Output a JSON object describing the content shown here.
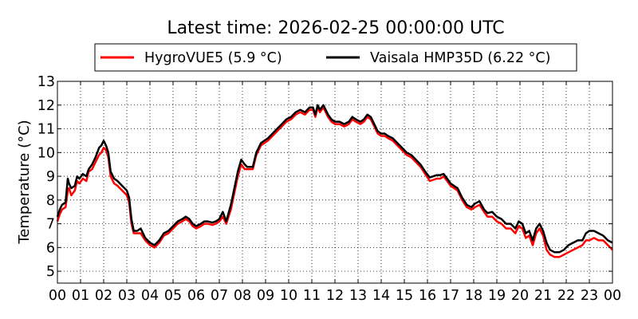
{
  "chart_data": {
    "type": "line",
    "title": "Latest time: 2026-02-25 00:00:00 UTC",
    "xlabel": "",
    "ylabel": "Temperature (°C)",
    "xlim": [
      0,
      24
    ],
    "ylim": [
      4.5,
      13
    ],
    "x_ticks": [
      0,
      1,
      2,
      3,
      4,
      5,
      6,
      7,
      8,
      9,
      10,
      11,
      12,
      13,
      14,
      15,
      16,
      17,
      18,
      19,
      20,
      21,
      22,
      23,
      24
    ],
    "x_tick_labels": [
      "00",
      "01",
      "02",
      "03",
      "04",
      "05",
      "06",
      "07",
      "08",
      "09",
      "10",
      "11",
      "12",
      "13",
      "14",
      "15",
      "16",
      "17",
      "18",
      "19",
      "20",
      "21",
      "22",
      "23",
      "00"
    ],
    "y_ticks": [
      5,
      6,
      7,
      8,
      9,
      10,
      11,
      12,
      13
    ],
    "y_tick_labels": [
      "5",
      "6",
      "7",
      "8",
      "9",
      "10",
      "11",
      "12",
      "13"
    ],
    "grid": true,
    "legend_position": "top-center",
    "series": [
      {
        "name": "HygroVUE5 (5.9 °C)",
        "color": "#ff0000",
        "x": [
          0,
          0.1,
          0.2,
          0.35,
          0.45,
          0.5,
          0.6,
          0.75,
          0.85,
          0.95,
          1.1,
          1.25,
          1.35,
          1.5,
          1.65,
          1.8,
          1.9,
          2.0,
          2.1,
          2.2,
          2.3,
          2.45,
          2.6,
          2.8,
          3.0,
          3.1,
          3.2,
          3.3,
          3.45,
          3.6,
          3.8,
          4.0,
          4.2,
          4.4,
          4.6,
          4.8,
          5.0,
          5.2,
          5.4,
          5.55,
          5.7,
          5.85,
          6.0,
          6.2,
          6.35,
          6.5,
          6.7,
          6.85,
          7.0,
          7.15,
          7.3,
          7.5,
          7.65,
          7.8,
          7.95,
          8.1,
          8.2,
          8.3,
          8.45,
          8.6,
          8.8,
          8.95,
          9.1,
          9.3,
          9.5,
          9.7,
          9.9,
          10.1,
          10.3,
          10.5,
          10.7,
          10.9,
          11.05,
          11.15,
          11.25,
          11.35,
          11.5,
          11.7,
          11.85,
          12.0,
          12.2,
          12.4,
          12.6,
          12.75,
          12.9,
          13.1,
          13.25,
          13.4,
          13.55,
          13.7,
          13.85,
          14.0,
          14.15,
          14.3,
          14.5,
          14.7,
          14.9,
          15.1,
          15.3,
          15.5,
          15.7,
          15.9,
          16.1,
          16.25,
          16.4,
          16.55,
          16.7,
          16.85,
          17.0,
          17.15,
          17.3,
          17.5,
          17.7,
          17.9,
          18.05,
          18.25,
          18.45,
          18.6,
          18.8,
          19.0,
          19.2,
          19.4,
          19.6,
          19.8,
          19.95,
          20.1,
          20.25,
          20.4,
          20.55,
          20.7,
          20.85,
          21.0,
          21.15,
          21.3,
          21.5,
          21.7,
          21.9,
          22.1,
          22.3,
          22.5,
          22.7,
          22.85,
          23.0,
          23.2,
          23.4,
          23.6,
          23.8,
          24.0
        ],
        "y": [
          7.1,
          7.4,
          7.6,
          7.7,
          8.4,
          8.5,
          8.2,
          8.4,
          8.8,
          8.7,
          8.9,
          8.8,
          9.2,
          9.3,
          9.6,
          9.9,
          10.0,
          10.2,
          10.1,
          9.8,
          9.0,
          8.7,
          8.6,
          8.4,
          8.2,
          7.9,
          7.0,
          6.6,
          6.6,
          6.6,
          6.3,
          6.1,
          6.0,
          6.2,
          6.5,
          6.6,
          6.8,
          7.0,
          7.1,
          7.2,
          7.1,
          6.9,
          6.8,
          6.9,
          7.0,
          7.0,
          6.95,
          7.0,
          7.1,
          7.3,
          7.0,
          7.6,
          8.3,
          9.0,
          9.5,
          9.3,
          9.3,
          9.3,
          9.3,
          9.9,
          10.3,
          10.4,
          10.5,
          10.7,
          10.9,
          11.1,
          11.3,
          11.4,
          11.6,
          11.7,
          11.6,
          11.8,
          11.8,
          11.5,
          11.9,
          11.7,
          11.9,
          11.5,
          11.3,
          11.2,
          11.2,
          11.1,
          11.2,
          11.4,
          11.3,
          11.2,
          11.3,
          11.5,
          11.4,
          11.1,
          10.8,
          10.7,
          10.7,
          10.6,
          10.5,
          10.3,
          10.1,
          9.9,
          9.8,
          9.6,
          9.4,
          9.1,
          8.8,
          8.85,
          8.9,
          8.9,
          9.0,
          8.8,
          8.6,
          8.5,
          8.4,
          8.0,
          7.7,
          7.6,
          7.7,
          7.8,
          7.5,
          7.3,
          7.3,
          7.1,
          7.0,
          6.8,
          6.8,
          6.6,
          6.9,
          6.8,
          6.4,
          6.5,
          6.1,
          6.6,
          6.8,
          6.5,
          5.9,
          5.7,
          5.6,
          5.6,
          5.7,
          5.8,
          5.9,
          6.0,
          6.1,
          6.3,
          6.3,
          6.4,
          6.3,
          6.3,
          6.1,
          5.9
        ]
      },
      {
        "name": "Vaisala HMP35D (6.22 °C)",
        "color": "#000000",
        "x": [
          0,
          0.1,
          0.2,
          0.35,
          0.45,
          0.5,
          0.6,
          0.75,
          0.85,
          0.95,
          1.1,
          1.25,
          1.35,
          1.5,
          1.65,
          1.8,
          1.9,
          2.0,
          2.1,
          2.2,
          2.3,
          2.45,
          2.6,
          2.8,
          3.0,
          3.1,
          3.2,
          3.3,
          3.45,
          3.6,
          3.8,
          4.0,
          4.2,
          4.4,
          4.6,
          4.8,
          5.0,
          5.2,
          5.4,
          5.55,
          5.7,
          5.85,
          6.0,
          6.2,
          6.35,
          6.5,
          6.7,
          6.85,
          7.0,
          7.15,
          7.3,
          7.5,
          7.65,
          7.8,
          7.95,
          8.1,
          8.2,
          8.3,
          8.45,
          8.6,
          8.8,
          8.95,
          9.1,
          9.3,
          9.5,
          9.7,
          9.9,
          10.1,
          10.3,
          10.5,
          10.7,
          10.9,
          11.05,
          11.15,
          11.25,
          11.35,
          11.5,
          11.7,
          11.85,
          12.0,
          12.2,
          12.4,
          12.6,
          12.75,
          12.9,
          13.1,
          13.25,
          13.4,
          13.55,
          13.7,
          13.85,
          14.0,
          14.15,
          14.3,
          14.5,
          14.7,
          14.9,
          15.1,
          15.3,
          15.5,
          15.7,
          15.9,
          16.1,
          16.25,
          16.4,
          16.55,
          16.7,
          16.85,
          17.0,
          17.15,
          17.3,
          17.5,
          17.7,
          17.9,
          18.05,
          18.25,
          18.45,
          18.6,
          18.8,
          19.0,
          19.2,
          19.4,
          19.6,
          19.8,
          19.95,
          20.1,
          20.25,
          20.4,
          20.55,
          20.7,
          20.85,
          21.0,
          21.15,
          21.3,
          21.5,
          21.7,
          21.9,
          22.1,
          22.3,
          22.5,
          22.7,
          22.85,
          23.0,
          23.2,
          23.4,
          23.6,
          23.8,
          24.0
        ],
        "y": [
          7.3,
          7.6,
          7.8,
          7.9,
          8.9,
          8.7,
          8.5,
          8.6,
          9.0,
          8.9,
          9.1,
          9.0,
          9.3,
          9.5,
          9.8,
          10.2,
          10.3,
          10.5,
          10.3,
          10.0,
          9.2,
          8.9,
          8.8,
          8.6,
          8.4,
          8.1,
          7.2,
          6.7,
          6.7,
          6.8,
          6.4,
          6.2,
          6.1,
          6.3,
          6.6,
          6.7,
          6.9,
          7.1,
          7.2,
          7.3,
          7.2,
          7.0,
          6.9,
          7.0,
          7.1,
          7.1,
          7.05,
          7.1,
          7.2,
          7.5,
          7.1,
          7.8,
          8.5,
          9.2,
          9.7,
          9.5,
          9.4,
          9.4,
          9.4,
          10.0,
          10.4,
          10.5,
          10.6,
          10.8,
          11.0,
          11.2,
          11.4,
          11.5,
          11.7,
          11.8,
          11.7,
          11.9,
          11.9,
          11.6,
          12.0,
          11.8,
          12.0,
          11.6,
          11.4,
          11.3,
          11.3,
          11.2,
          11.3,
          11.5,
          11.4,
          11.3,
          11.4,
          11.6,
          11.5,
          11.2,
          10.9,
          10.8,
          10.8,
          10.7,
          10.6,
          10.4,
          10.2,
          10.0,
          9.9,
          9.7,
          9.5,
          9.2,
          8.95,
          9.0,
          9.05,
          9.05,
          9.1,
          8.9,
          8.7,
          8.6,
          8.5,
          8.1,
          7.8,
          7.7,
          7.85,
          7.95,
          7.6,
          7.45,
          7.5,
          7.3,
          7.2,
          7.0,
          7.0,
          6.8,
          7.1,
          7.0,
          6.6,
          6.7,
          6.3,
          6.8,
          7.0,
          6.7,
          6.2,
          5.9,
          5.8,
          5.8,
          5.9,
          6.1,
          6.2,
          6.3,
          6.3,
          6.6,
          6.7,
          6.7,
          6.6,
          6.5,
          6.3,
          6.2
        ]
      }
    ]
  }
}
